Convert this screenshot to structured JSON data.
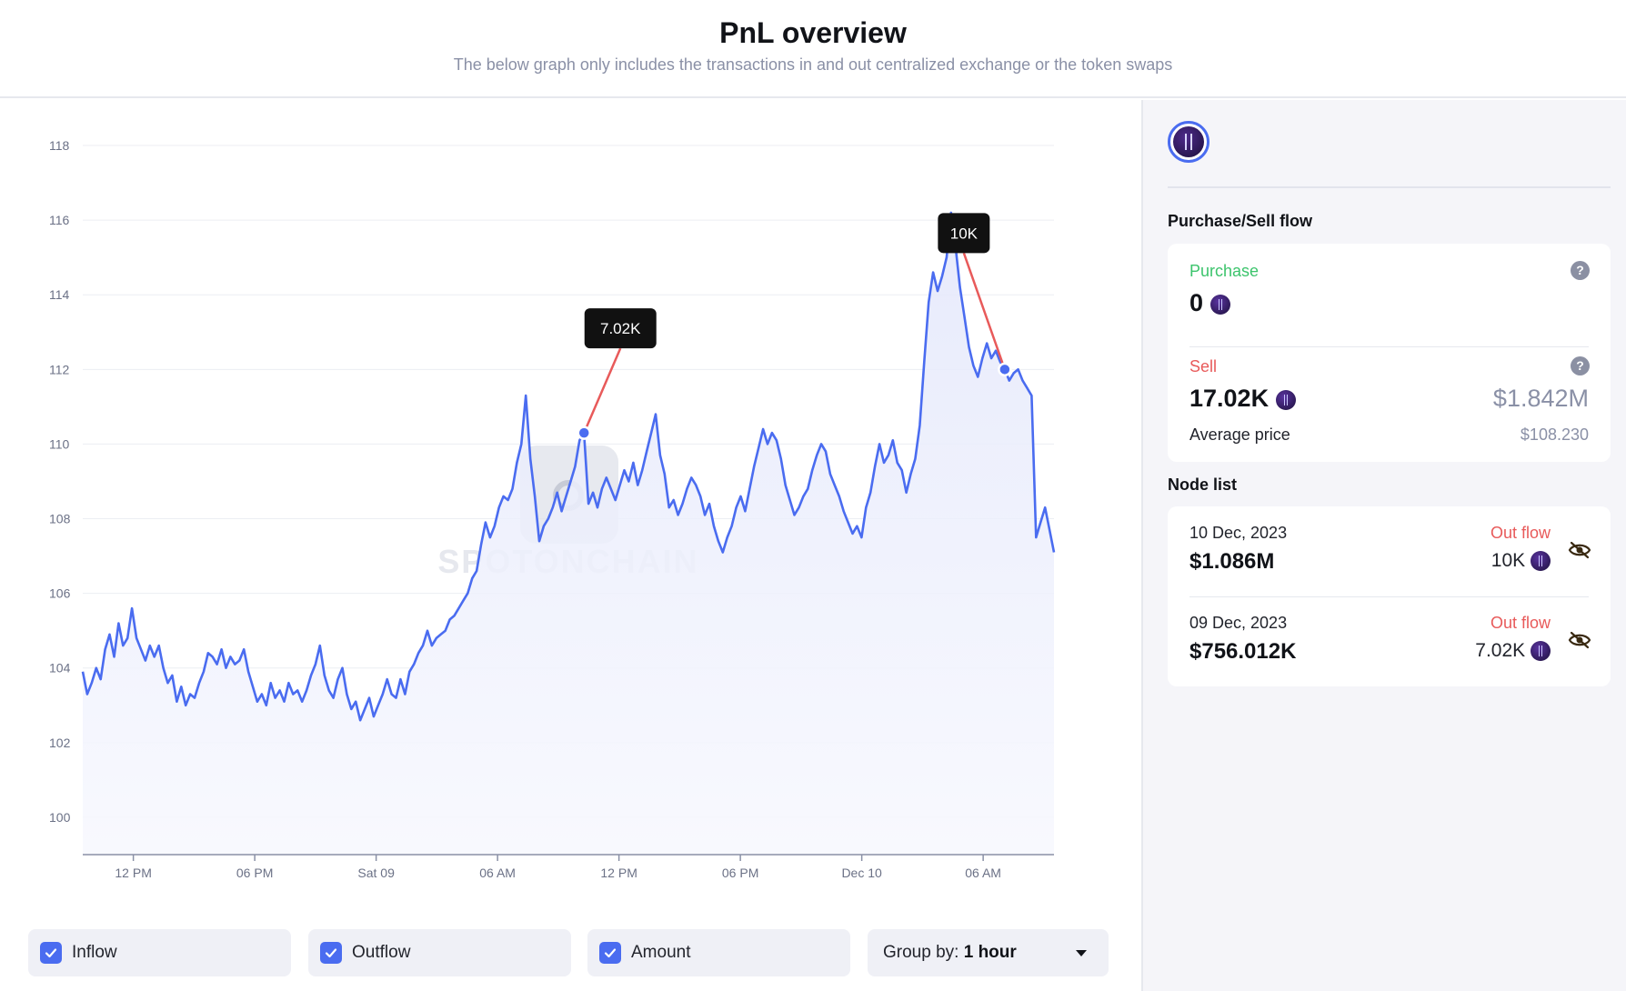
{
  "header": {
    "title": "PnL overview",
    "subtitle": "The below graph only includes the transactions in and out centralized exchange or the token swaps"
  },
  "chart": {
    "watermark": "SPOTONCHAIN",
    "line_color": "#4a6cf0",
    "marker_line_color": "#e85a5a",
    "markers": [
      {
        "label": "7.02K",
        "index": 112
      },
      {
        "label": "10K",
        "index": 206
      }
    ]
  },
  "chart_data": {
    "type": "area",
    "title": "",
    "xlabel": "",
    "ylabel": "",
    "ylim": [
      99,
      118
    ],
    "yticks": [
      100,
      102,
      104,
      106,
      108,
      110,
      112,
      114,
      116,
      118
    ],
    "xtick_labels": [
      "12 PM",
      "06 PM",
      "Sat 09",
      "06 AM",
      "12 PM",
      "06 PM",
      "Dec 10",
      "06 AM"
    ],
    "x_hours_start": 9.5,
    "x_hours_end": 57.5,
    "x_tick_hours": [
      12,
      18,
      24,
      30,
      36,
      42,
      48,
      54
    ],
    "grid": true,
    "values": [
      103.9,
      103.3,
      103.6,
      104.0,
      103.7,
      104.5,
      104.9,
      104.3,
      105.2,
      104.6,
      104.8,
      105.6,
      104.8,
      104.5,
      104.2,
      104.6,
      104.3,
      104.6,
      104.0,
      103.6,
      103.8,
      103.1,
      103.5,
      103.0,
      103.3,
      103.2,
      103.6,
      103.9,
      104.4,
      104.3,
      104.1,
      104.5,
      104.0,
      104.3,
      104.1,
      104.2,
      104.5,
      103.9,
      103.5,
      103.1,
      103.3,
      103.0,
      103.6,
      103.2,
      103.4,
      103.1,
      103.6,
      103.3,
      103.4,
      103.1,
      103.4,
      103.8,
      104.1,
      104.6,
      103.8,
      103.4,
      103.2,
      103.7,
      104.0,
      103.3,
      102.9,
      103.1,
      102.6,
      102.9,
      103.2,
      102.7,
      103.0,
      103.3,
      103.7,
      103.3,
      103.2,
      103.7,
      103.3,
      103.9,
      104.1,
      104.4,
      104.6,
      105.0,
      104.6,
      104.8,
      104.9,
      105.0,
      105.3,
      105.4,
      105.6,
      105.8,
      106.0,
      106.4,
      106.6,
      107.3,
      107.9,
      107.5,
      107.8,
      108.3,
      108.6,
      108.5,
      108.8,
      109.5,
      110.0,
      111.3,
      109.6,
      108.6,
      107.4,
      107.8,
      108.0,
      108.3,
      108.7,
      108.2,
      108.6,
      109.0,
      109.4,
      110.1,
      110.3,
      108.4,
      108.7,
      108.3,
      108.8,
      109.1,
      108.8,
      108.5,
      108.9,
      109.3,
      109.0,
      109.5,
      108.9,
      109.3,
      109.8,
      110.3,
      110.8,
      109.7,
      109.2,
      108.3,
      108.5,
      108.1,
      108.4,
      108.8,
      109.1,
      108.9,
      108.6,
      108.1,
      108.4,
      107.8,
      107.4,
      107.1,
      107.5,
      107.8,
      108.3,
      108.6,
      108.2,
      108.8,
      109.4,
      109.9,
      110.4,
      110.0,
      110.3,
      110.1,
      109.6,
      108.9,
      108.5,
      108.1,
      108.3,
      108.6,
      108.8,
      109.3,
      109.7,
      110.0,
      109.8,
      109.2,
      108.9,
      108.6,
      108.2,
      107.9,
      107.6,
      107.8,
      107.5,
      108.3,
      108.7,
      109.4,
      110.0,
      109.5,
      109.7,
      110.1,
      109.5,
      109.3,
      108.7,
      109.2,
      109.6,
      110.5,
      112.2,
      113.8,
      114.6,
      114.1,
      114.5,
      115.0,
      116.2,
      115.3,
      114.2,
      113.4,
      112.6,
      112.1,
      111.8,
      112.3,
      112.7,
      112.3,
      112.5,
      112.2,
      112.0,
      111.7,
      111.9,
      112.0,
      111.7,
      111.5,
      111.3,
      107.5,
      107.9,
      108.3,
      107.7,
      107.1
    ]
  },
  "legend": {
    "inflow": {
      "label": "Inflow",
      "checked": true
    },
    "outflow": {
      "label": "Outflow",
      "checked": true
    },
    "amount": {
      "label": "Amount",
      "checked": true
    },
    "group_by": {
      "label": "Group by:",
      "value": "1 hour"
    }
  },
  "sidebar": {
    "flow_title": "Purchase/Sell flow",
    "purchase": {
      "label": "Purchase",
      "amount": "0",
      "label_color": "#3cc46c"
    },
    "sell": {
      "label": "Sell",
      "amount": "17.02K",
      "usd": "$1.842M",
      "avg_label": "Average price",
      "avg_value": "$108.230",
      "label_color": "#e85a5a"
    },
    "node_list_title": "Node list",
    "nodes": [
      {
        "date": "10 Dec, 2023",
        "value": "$1.086M",
        "flow": "Out flow",
        "amount": "10K"
      },
      {
        "date": "09 Dec, 2023",
        "value": "$756.012K",
        "flow": "Out flow",
        "amount": "7.02K"
      }
    ]
  }
}
